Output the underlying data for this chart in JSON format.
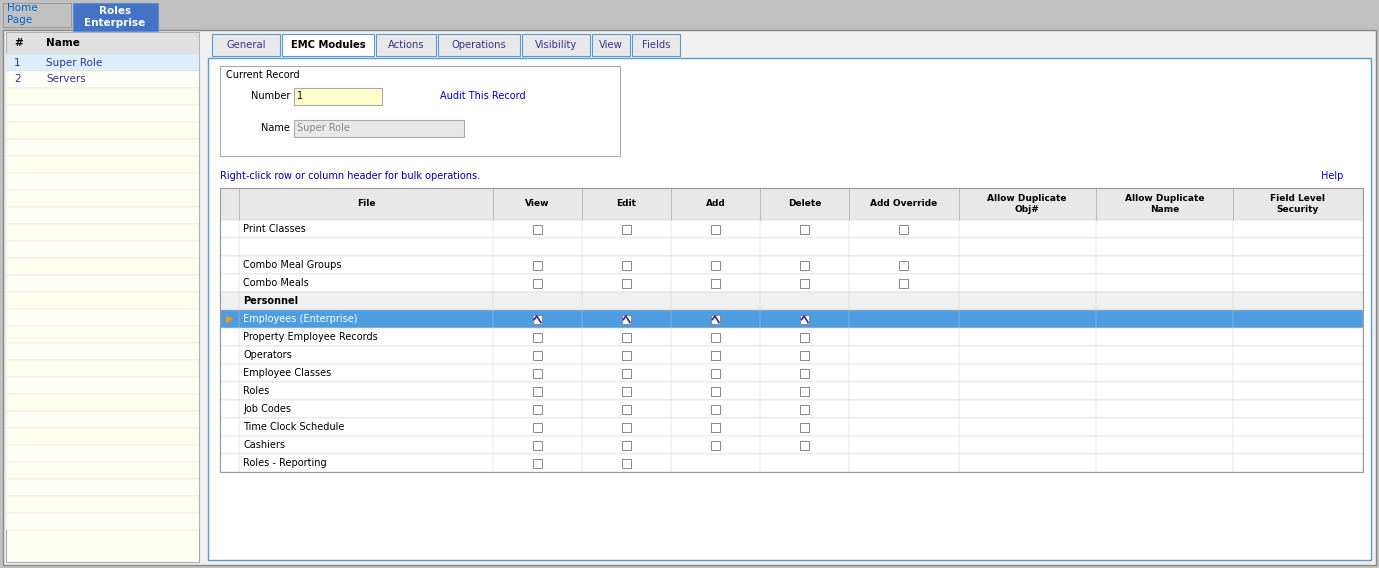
{
  "bg_color": "#c0c0c0",
  "active_tab": "EMC Modules",
  "tabs": [
    "General",
    "EMC Modules",
    "Actions",
    "Operations",
    "Visibility",
    "View",
    "Fields"
  ],
  "left_table_rows": [
    [
      "1",
      "Super Role"
    ],
    [
      "2",
      "Servers"
    ]
  ],
  "number_value": "1",
  "name_value": "Super Role",
  "audit_link": "Audit This Record",
  "right_click_text": "Right-click row or column header for bulk operations.",
  "help_link": "Help",
  "table_headers": [
    "",
    "File",
    "View",
    "Edit",
    "Add",
    "Delete",
    "Add Override",
    "Allow Duplicate\nObj#",
    "Allow Duplicate\nName",
    "Field Level\nSecurity"
  ],
  "table_rows": [
    {
      "name": "Print Classes",
      "view": false,
      "edit": false,
      "add": false,
      "delete": false,
      "add_override": true,
      "bold": false,
      "highlight": false,
      "section_header": false,
      "arrow": false,
      "show_view": true,
      "show_edit": true,
      "show_add": true,
      "show_delete": true
    },
    {
      "name": "",
      "view": false,
      "edit": false,
      "add": false,
      "delete": false,
      "add_override": false,
      "bold": false,
      "highlight": false,
      "section_header": false,
      "arrow": false,
      "show_view": false,
      "show_edit": false,
      "show_add": false,
      "show_delete": false
    },
    {
      "name": "Combo Meal Groups",
      "view": false,
      "edit": false,
      "add": false,
      "delete": false,
      "add_override": true,
      "bold": false,
      "highlight": false,
      "section_header": false,
      "arrow": false,
      "show_view": true,
      "show_edit": true,
      "show_add": true,
      "show_delete": true
    },
    {
      "name": "Combo Meals",
      "view": false,
      "edit": false,
      "add": false,
      "delete": false,
      "add_override": true,
      "bold": false,
      "highlight": false,
      "section_header": false,
      "arrow": false,
      "show_view": true,
      "show_edit": true,
      "show_add": true,
      "show_delete": true
    },
    {
      "name": "Personnel",
      "view": false,
      "edit": false,
      "add": false,
      "delete": false,
      "add_override": false,
      "bold": true,
      "highlight": false,
      "section_header": true,
      "arrow": false,
      "show_view": false,
      "show_edit": false,
      "show_add": false,
      "show_delete": false
    },
    {
      "name": "Employees (Enterprise)",
      "view": true,
      "edit": true,
      "add": true,
      "delete": true,
      "add_override": false,
      "bold": false,
      "highlight": true,
      "section_header": false,
      "arrow": true,
      "show_view": true,
      "show_edit": true,
      "show_add": true,
      "show_delete": true
    },
    {
      "name": "Property Employee Records",
      "view": false,
      "edit": false,
      "add": false,
      "delete": false,
      "add_override": false,
      "bold": false,
      "highlight": false,
      "section_header": false,
      "arrow": false,
      "show_view": true,
      "show_edit": true,
      "show_add": true,
      "show_delete": true
    },
    {
      "name": "Operators",
      "view": false,
      "edit": false,
      "add": false,
      "delete": false,
      "add_override": false,
      "bold": false,
      "highlight": false,
      "section_header": false,
      "arrow": false,
      "show_view": true,
      "show_edit": true,
      "show_add": true,
      "show_delete": true
    },
    {
      "name": "Employee Classes",
      "view": false,
      "edit": false,
      "add": false,
      "delete": false,
      "add_override": false,
      "bold": false,
      "highlight": false,
      "section_header": false,
      "arrow": false,
      "show_view": true,
      "show_edit": true,
      "show_add": true,
      "show_delete": true
    },
    {
      "name": "Roles",
      "view": false,
      "edit": false,
      "add": false,
      "delete": false,
      "add_override": false,
      "bold": false,
      "highlight": false,
      "section_header": false,
      "arrow": false,
      "show_view": true,
      "show_edit": true,
      "show_add": true,
      "show_delete": true
    },
    {
      "name": "Job Codes",
      "view": false,
      "edit": false,
      "add": false,
      "delete": false,
      "add_override": false,
      "bold": false,
      "highlight": false,
      "section_header": false,
      "arrow": false,
      "show_view": true,
      "show_edit": true,
      "show_add": true,
      "show_delete": true
    },
    {
      "name": "Time Clock Schedule",
      "view": false,
      "edit": false,
      "add": false,
      "delete": false,
      "add_override": false,
      "bold": false,
      "highlight": false,
      "section_header": false,
      "arrow": false,
      "show_view": true,
      "show_edit": true,
      "show_add": true,
      "show_delete": true
    },
    {
      "name": "Cashiers",
      "view": false,
      "edit": false,
      "add": false,
      "delete": false,
      "add_override": false,
      "bold": false,
      "highlight": false,
      "section_header": false,
      "arrow": false,
      "show_view": true,
      "show_edit": true,
      "show_add": true,
      "show_delete": true
    },
    {
      "name": "Roles - Reporting",
      "view": false,
      "edit": false,
      "add": false,
      "delete": false,
      "add_override": false,
      "bold": false,
      "highlight": false,
      "section_header": false,
      "arrow": false,
      "show_view": true,
      "show_edit": true,
      "show_add": false,
      "show_delete": false
    }
  ],
  "highlight_color": "#4d9de0",
  "highlight_text_color": "#ffffff",
  "tab_active_bg": "#ffffff",
  "tab_inactive_bg": "#e8e8e8",
  "tab_border": "#5b9bd5"
}
